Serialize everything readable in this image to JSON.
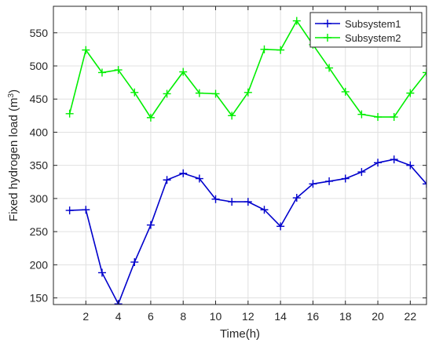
{
  "chart_data": {
    "type": "line",
    "title": "",
    "xlabel": "Time(h)",
    "ylabel": "Fixed hydrogen load (m",
    "ylabel_superscript": "3",
    "ylabel_suffix": ")",
    "xlim": [
      0,
      23
    ],
    "ylim": [
      140,
      590
    ],
    "xticks": [
      2,
      4,
      6,
      8,
      10,
      12,
      14,
      16,
      18,
      20,
      22
    ],
    "yticks": [
      150,
      200,
      250,
      300,
      350,
      400,
      450,
      500,
      550
    ],
    "grid": true,
    "legend_position": "top-right",
    "x": [
      1,
      2,
      3,
      4,
      5,
      6,
      7,
      8,
      9,
      10,
      11,
      12,
      13,
      14,
      15,
      16,
      17,
      18,
      19,
      20,
      21,
      22,
      23
    ],
    "series": [
      {
        "name": "Subsystem1",
        "color": "#0000cc",
        "values": [
          282,
          283,
          188,
          141,
          204,
          260,
          328,
          338,
          330,
          299,
          295,
          295,
          283,
          258,
          301,
          322,
          326,
          330,
          340,
          354,
          359,
          350,
          322
        ]
      },
      {
        "name": "Subsystem2",
        "color": "#00ee00",
        "values": [
          428,
          524,
          490,
          494,
          460,
          422,
          458,
          491,
          459,
          458,
          425,
          460,
          525,
          524,
          568,
          532,
          497,
          461,
          427,
          423,
          423,
          459,
          490
        ]
      }
    ]
  }
}
